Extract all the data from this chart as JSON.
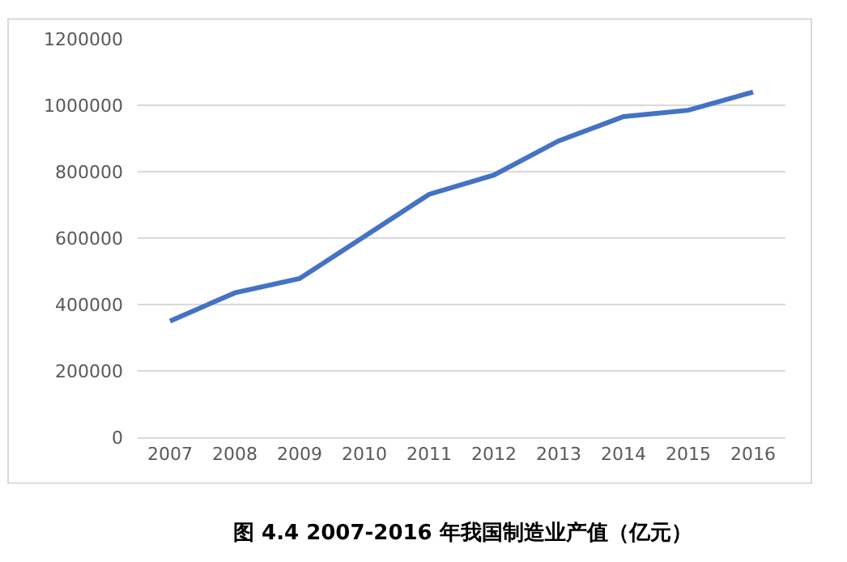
{
  "chart_data": {
    "type": "line",
    "categories": [
      "2007",
      "2008",
      "2009",
      "2010",
      "2011",
      "2012",
      "2013",
      "2014",
      "2015",
      "2016"
    ],
    "series": [
      {
        "color": "#4472c4",
        "values": [
          350000,
          435000,
          478000,
          605000,
          732000,
          790000,
          893000,
          966000,
          985000,
          1040000
        ]
      }
    ],
    "ylim": [
      0,
      1200000
    ],
    "yticks": [
      0,
      200000,
      400000,
      600000,
      800000,
      1000000,
      1200000
    ],
    "grid": "y",
    "marker": "none",
    "line_style": "solid",
    "annotations": [
      "图 4.4 2007-2016 年我国制造业产值（亿元）"
    ]
  }
}
